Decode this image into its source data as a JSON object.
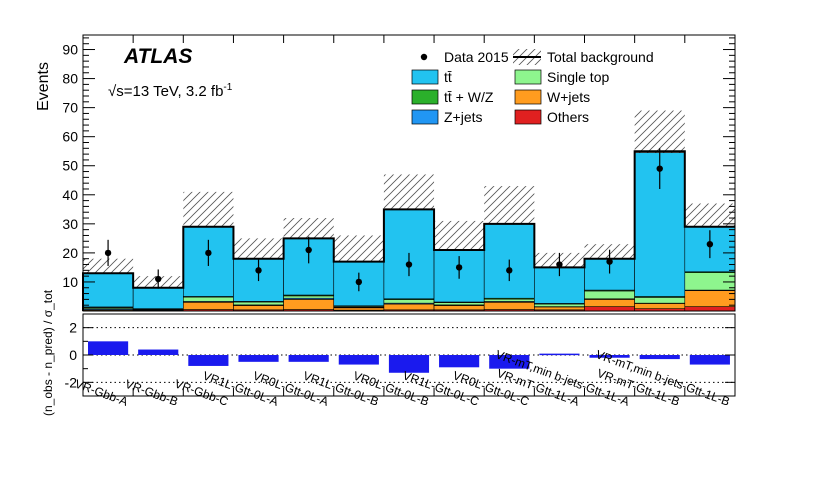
{
  "chart_data": {
    "type": "bar",
    "title": "ATLAS",
    "subtitle": "√s=13 TeV, 3.2 fb⁻¹",
    "energy_label": "√s=13 TeV, 3.2 fb",
    "lumi_exponent": "-1",
    "ylabel": "Events",
    "ratio_ylabel": "(n_obs - n_pred) / σ_tot",
    "ylim": [
      0,
      95
    ],
    "ratio_ylim": [
      -3,
      3
    ],
    "yticks": [
      10,
      20,
      30,
      40,
      50,
      60,
      70,
      80,
      90
    ],
    "ratio_yticks": [
      -2,
      0,
      2
    ],
    "categories": [
      "VR-Gbb-A",
      "VR-Gbb-B",
      "VR-Gbb-C",
      "VR1L-Gtt-0L-A",
      "VR0L-Gtt-0L-A",
      "VR1L-Gtt-0L-B",
      "VR0L-Gtt-0L-B",
      "VR1L-Gtt-0L-C",
      "VR0L-Gtt-0L-C",
      "VR-mT-Gtt-1L-A",
      "VR-mT,min b-jets-Gtt-1L-A",
      "VR-mT-Gtt-1L-B",
      "VR-mT,min b-jets-Gtt-1L-B"
    ],
    "series": [
      {
        "name": "Others",
        "color": "#e02020",
        "values": [
          0.2,
          0.1,
          0.5,
          0.4,
          0.5,
          0.3,
          0.4,
          0.4,
          0.5,
          0.4,
          1.5,
          0.8,
          1.5
        ]
      },
      {
        "name": "W+jets",
        "color": "#ff9c1f",
        "values": [
          0.3,
          0.2,
          2.5,
          1.5,
          3.5,
          0.8,
          2.0,
          1.5,
          2.5,
          1.0,
          2.5,
          1.8,
          5.5
        ]
      },
      {
        "name": "Z+jets",
        "color": "#2196f3",
        "values": [
          0.3,
          0.2,
          0.3,
          0.2,
          0.4,
          0.2,
          0.3,
          0.2,
          0.3,
          0.1,
          0.2,
          0.1,
          0.2
        ]
      },
      {
        "name": "Single top",
        "color": "#8ef58e",
        "values": [
          0.4,
          0.2,
          1.5,
          1.0,
          0.8,
          0.3,
          1.2,
          0.8,
          0.8,
          0.9,
          2.7,
          2.0,
          6.0
        ]
      },
      {
        "name": "tt̄ + W/Z",
        "color": "#2bb02b",
        "values": [
          0.2,
          0.1,
          0.2,
          0.2,
          0.3,
          0.2,
          0.3,
          0.2,
          0.3,
          0.2,
          0.3,
          0.3,
          0.3
        ]
      },
      {
        "name": "tt̄",
        "color": "#22c3f0",
        "values": [
          11.6,
          7.2,
          24.0,
          14.7,
          19.5,
          15.2,
          30.8,
          17.9,
          25.6,
          12.4,
          10.8,
          49.5,
          15.5
        ]
      }
    ],
    "total_background": [
      13,
      8,
      29,
      18,
      25,
      17,
      35,
      21,
      30,
      15,
      18,
      55,
      29
    ],
    "uncertainty_band": [
      [
        8,
        18
      ],
      [
        6,
        12
      ],
      [
        19,
        41
      ],
      [
        11,
        25
      ],
      [
        16,
        32
      ],
      [
        9,
        26
      ],
      [
        25,
        47
      ],
      [
        13,
        31
      ],
      [
        17,
        43
      ],
      [
        10,
        20
      ],
      [
        13,
        23
      ],
      [
        40,
        69
      ],
      [
        21,
        37
      ]
    ],
    "data_2015": [
      20,
      11,
      20,
      14,
      21,
      10,
      16,
      15,
      14,
      16,
      17,
      49,
      23
    ],
    "data_errors": [
      4.5,
      3.3,
      4.5,
      3.7,
      4.6,
      3.2,
      4.0,
      3.9,
      3.7,
      4.0,
      4.1,
      7.0,
      4.8
    ],
    "ratio_values": [
      1.0,
      0.4,
      -0.8,
      -0.5,
      -0.5,
      -0.7,
      -1.3,
      -0.9,
      -1.0,
      0.1,
      -0.2,
      -0.3,
      -0.7
    ],
    "legend": {
      "position": "top-right",
      "entries": [
        {
          "label": "Data 2015",
          "kind": "data"
        },
        {
          "label": "Total background",
          "kind": "total"
        },
        {
          "label": "tt̄",
          "kind": "fill",
          "color": "#22c3f0"
        },
        {
          "label": "Single top",
          "kind": "fill",
          "color": "#8ef58e"
        },
        {
          "label": "tt̄ + W/Z",
          "kind": "fill",
          "color": "#2bb02b"
        },
        {
          "label": "W+jets",
          "kind": "fill",
          "color": "#ff9c1f"
        },
        {
          "label": "Z+jets",
          "kind": "fill",
          "color": "#2196f3"
        },
        {
          "label": "Others",
          "kind": "fill",
          "color": "#e02020"
        }
      ]
    },
    "ratio_color": "#1a1aee"
  }
}
